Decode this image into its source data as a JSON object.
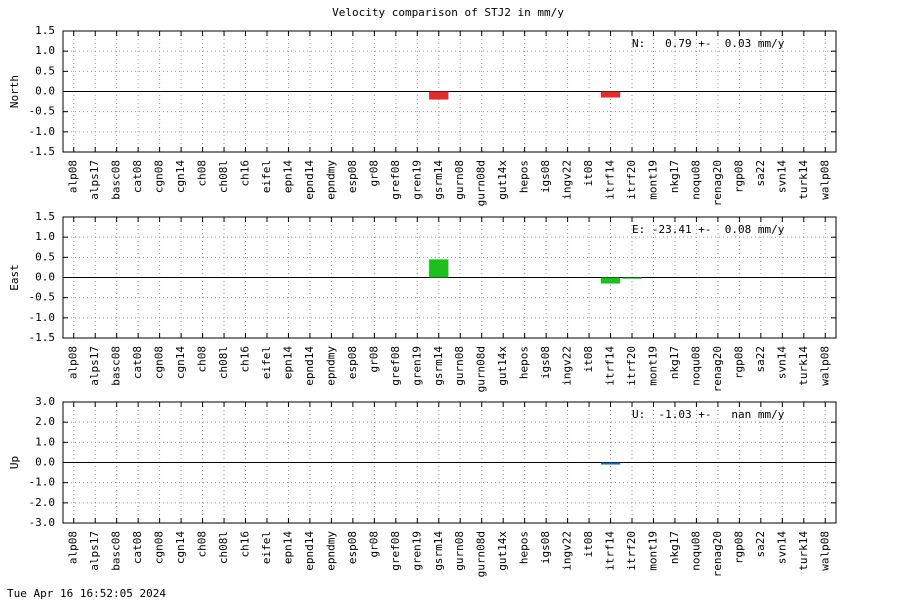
{
  "title": "Velocity comparison of STJ2 in mm/y",
  "timestamp": "Tue Apr 16 16:52:05 2024",
  "chart_data": [
    {
      "type": "bar",
      "ylabel": "North",
      "annotation": "N:   0.79 +-  0.03 mm/y",
      "color": "#e02c2c",
      "grid": true,
      "categories": [
        "alp08",
        "alps17",
        "basc08",
        "cat08",
        "cgn08",
        "cgn14",
        "ch08",
        "ch08l",
        "ch16",
        "eifel",
        "epn14",
        "epnd14",
        "epndmy",
        "esp08",
        "gr08",
        "gref08",
        "gren19",
        "gsrm14",
        "gurn08",
        "gurn08d",
        "gut14x",
        "hepos",
        "igs08",
        "ingv22",
        "it08",
        "itrf14",
        "itrf20",
        "mont19",
        "nkg17",
        "noqu08",
        "renag20",
        "rgp08",
        "sa22",
        "svn14",
        "turk14",
        "walp08"
      ],
      "values": [
        0,
        0,
        0,
        0,
        0,
        0,
        0,
        0,
        0,
        0,
        0,
        0,
        0,
        0,
        0,
        0,
        0,
        -0.2,
        0,
        0,
        0,
        0,
        0,
        0,
        0,
        -0.15,
        0,
        0,
        0,
        0,
        0,
        0,
        0,
        0,
        0,
        0
      ],
      "ylim": [
        -1.5,
        1.5
      ],
      "yticks": [
        1.5,
        {
          "value": 1.0,
          "label": "1.0"
        },
        0.5,
        {
          "value": 0,
          "label": "0.0"
        },
        -0.5,
        {
          "value": -1.0,
          "label": "-1.0"
        },
        -1.5
      ]
    },
    {
      "type": "bar",
      "ylabel": "East",
      "annotation": "E: -23.41 +-  0.08 mm/y",
      "color": "#1cbf1c",
      "grid": true,
      "categories": [
        "alp08",
        "alps17",
        "basc08",
        "cat08",
        "cgn08",
        "cgn14",
        "ch08",
        "ch08l",
        "ch16",
        "eifel",
        "epn14",
        "epnd14",
        "epndmy",
        "esp08",
        "gr08",
        "gref08",
        "gren19",
        "gsrm14",
        "gurn08",
        "gurn08d",
        "gut14x",
        "hepos",
        "igs08",
        "ingv22",
        "it08",
        "itrf14",
        "itrf20",
        "mont19",
        "nkg17",
        "noqu08",
        "renag20",
        "rgp08",
        "sa22",
        "svn14",
        "turk14",
        "walp08"
      ],
      "values": [
        0,
        0,
        0,
        0,
        0,
        0,
        0,
        0,
        0,
        0,
        0,
        0,
        0,
        0,
        0,
        0,
        0,
        0.45,
        0,
        0,
        0,
        0,
        0,
        0,
        0,
        -0.15,
        -0.03,
        0,
        0,
        0,
        0,
        0,
        0,
        0,
        0,
        0
      ],
      "ylim": [
        -1.5,
        1.5
      ],
      "yticks": [
        1.5,
        {
          "value": 1.0,
          "label": "1.0"
        },
        0.5,
        {
          "value": 0,
          "label": "0.0"
        },
        -0.5,
        {
          "value": -1.0,
          "label": "-1.0"
        },
        -1.5
      ]
    },
    {
      "type": "bar",
      "ylabel": "Up",
      "annotation": "U:  -1.03 +-   nan mm/y",
      "color": "#1a64d0",
      "grid": true,
      "categories": [
        "alp08",
        "alps17",
        "basc08",
        "cat08",
        "cgn08",
        "cgn14",
        "ch08",
        "ch08l",
        "ch16",
        "eifel",
        "epn14",
        "epnd14",
        "epndmy",
        "esp08",
        "gr08",
        "gref08",
        "gren19",
        "gsrm14",
        "gurn08",
        "gurn08d",
        "gut14x",
        "hepos",
        "igs08",
        "ingv22",
        "it08",
        "itrf14",
        "itrf20",
        "mont19",
        "nkg17",
        "noqu08",
        "renag20",
        "rgp08",
        "sa22",
        "svn14",
        "turk14",
        "walp08"
      ],
      "values": [
        0,
        0,
        0,
        0,
        0,
        0,
        0,
        0,
        0,
        0,
        0,
        0,
        0,
        0,
        0,
        0,
        0,
        0,
        0,
        0,
        0,
        0,
        0,
        0,
        0,
        -0.1,
        0,
        0,
        0,
        0,
        0,
        0,
        0,
        0,
        0,
        0
      ],
      "ylim": [
        -3.0,
        3.0
      ],
      "yticks": [
        {
          "value": 3.0,
          "label": "3.0"
        },
        {
          "value": 2.0,
          "label": "2.0"
        },
        {
          "value": 1.0,
          "label": "1.0"
        },
        {
          "value": 0,
          "label": "0.0"
        },
        {
          "value": -1.0,
          "label": "-1.0"
        },
        {
          "value": -2.0,
          "label": "-2.0"
        },
        {
          "value": -3.0,
          "label": "-3.0"
        }
      ]
    }
  ]
}
